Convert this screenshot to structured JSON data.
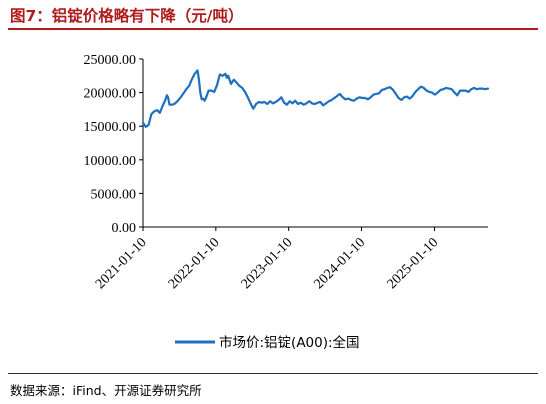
{
  "figure": {
    "title": "图7：铝锭价格略有下降（元/吨）",
    "source": "数据来源：iFind、开源证券研究所"
  },
  "colors": {
    "title": "#b01c1c",
    "series": "#1f6fbf",
    "axis": "#000000"
  },
  "chart_data": {
    "type": "line",
    "title": "",
    "xlabel": "",
    "ylabel": "",
    "legend_position": "bottom",
    "grid": false,
    "ylim": [
      0,
      25000
    ],
    "y_ticks": [
      "0.00",
      "5000.00",
      "10000.00",
      "15000.00",
      "20000.00",
      "25000.00"
    ],
    "x_range": [
      "2021-01-10",
      "2025-10-05"
    ],
    "x_ticks": [
      "2021-01-10",
      "2022-01-10",
      "2023-01-10",
      "2024-01-10",
      "2025-01-10"
    ],
    "series": [
      {
        "name": "市场价:铝锭(A00):全国",
        "x": [
          "2021-01-10",
          "2021-01-24",
          "2021-02-07",
          "2021-02-21",
          "2021-03-07",
          "2021-03-21",
          "2021-04-04",
          "2021-04-18",
          "2021-05-02",
          "2021-05-10",
          "2021-05-16",
          "2021-05-23",
          "2021-06-06",
          "2021-06-20",
          "2021-07-04",
          "2021-07-18",
          "2021-08-01",
          "2021-08-15",
          "2021-08-29",
          "2021-09-12",
          "2021-09-26",
          "2021-10-10",
          "2021-10-17",
          "2021-10-24",
          "2021-10-31",
          "2021-11-07",
          "2021-11-14",
          "2021-11-21",
          "2021-12-05",
          "2021-12-19",
          "2022-01-02",
          "2022-01-16",
          "2022-01-30",
          "2022-02-13",
          "2022-02-27",
          "2022-03-06",
          "2022-03-13",
          "2022-03-27",
          "2022-04-10",
          "2022-04-24",
          "2022-05-08",
          "2022-05-22",
          "2022-06-05",
          "2022-06-19",
          "2022-07-03",
          "2022-07-17",
          "2022-07-31",
          "2022-08-14",
          "2022-08-28",
          "2022-09-11",
          "2022-09-25",
          "2022-10-09",
          "2022-10-23",
          "2022-11-06",
          "2022-11-20",
          "2022-12-04",
          "2022-12-18",
          "2023-01-01",
          "2023-01-15",
          "2023-01-29",
          "2023-02-12",
          "2023-02-26",
          "2023-03-12",
          "2023-03-26",
          "2023-04-09",
          "2023-04-23",
          "2023-05-07",
          "2023-05-21",
          "2023-06-04",
          "2023-06-18",
          "2023-07-02",
          "2023-07-16",
          "2023-07-30",
          "2023-08-13",
          "2023-08-27",
          "2023-09-10",
          "2023-09-24",
          "2023-10-08",
          "2023-10-22",
          "2023-11-05",
          "2023-11-19",
          "2023-12-03",
          "2023-12-17",
          "2023-12-31",
          "2024-01-14",
          "2024-01-28",
          "2024-02-11",
          "2024-02-25",
          "2024-03-10",
          "2024-03-24",
          "2024-04-07",
          "2024-04-21",
          "2024-05-05",
          "2024-05-19",
          "2024-06-02",
          "2024-06-16",
          "2024-06-30",
          "2024-07-14",
          "2024-07-28",
          "2024-08-11",
          "2024-08-25",
          "2024-09-08",
          "2024-09-22",
          "2024-10-06",
          "2024-10-20",
          "2024-11-03",
          "2024-11-17",
          "2024-12-01",
          "2024-12-15",
          "2024-12-29",
          "2025-01-12",
          "2025-01-26",
          "2025-02-09",
          "2025-02-23",
          "2025-03-09",
          "2025-03-23",
          "2025-04-06",
          "2025-04-20",
          "2025-05-04",
          "2025-05-18",
          "2025-06-01",
          "2025-06-15",
          "2025-06-29",
          "2025-07-13",
          "2025-07-27",
          "2025-08-10",
          "2025-08-24",
          "2025-09-07",
          "2025-09-21",
          "2025-10-05"
        ],
        "values": [
          15500,
          14900,
          15200,
          16800,
          17200,
          17400,
          17000,
          18000,
          18900,
          19600,
          19300,
          18200,
          18200,
          18400,
          18800,
          19300,
          19900,
          20500,
          21000,
          22000,
          22800,
          23300,
          22000,
          20000,
          19000,
          19100,
          18800,
          19200,
          20300,
          20300,
          20100,
          21100,
          22700,
          22500,
          22800,
          22200,
          22500,
          21300,
          21900,
          21500,
          21000,
          20700,
          20100,
          19300,
          18400,
          17600,
          18300,
          18600,
          18500,
          18600,
          18300,
          18700,
          18400,
          18600,
          18900,
          19300,
          18500,
          18200,
          18700,
          18400,
          18800,
          18300,
          18500,
          18200,
          18400,
          18700,
          18400,
          18300,
          18500,
          18600,
          18100,
          18400,
          18700,
          18900,
          19200,
          19500,
          19800,
          19300,
          19000,
          19100,
          18900,
          18800,
          19100,
          19300,
          19200,
          19200,
          19000,
          19300,
          19700,
          19800,
          19900,
          20400,
          20500,
          20700,
          20800,
          20400,
          19800,
          19200,
          18900,
          19300,
          19400,
          19100,
          19500,
          20100,
          20500,
          20900,
          20700,
          20300,
          20100,
          20000,
          19700,
          20000,
          20400,
          20500,
          20700,
          20600,
          20500,
          20000,
          19600,
          20300,
          20300,
          20300,
          20100,
          20500,
          20700,
          20500,
          20600,
          20600,
          20500,
          20600
        ]
      }
    ]
  }
}
